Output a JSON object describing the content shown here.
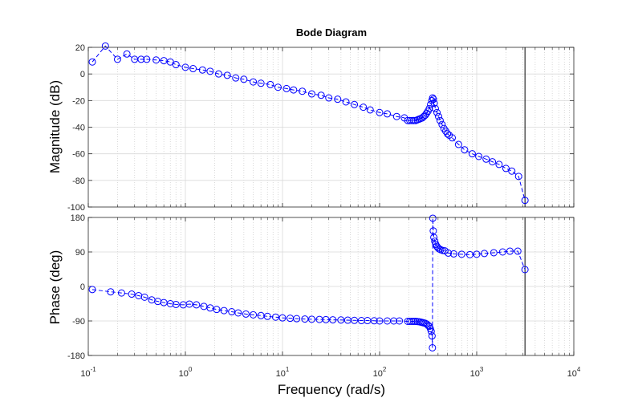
{
  "chart_data": {
    "type": "line",
    "title": "Bode Diagram",
    "xlabel": "Frequency  (rad/s)",
    "xscale": "log",
    "xlim": [
      0.1,
      10000
    ],
    "x_ticks": [
      {
        "base": "10",
        "exp": "-1"
      },
      {
        "base": "10",
        "exp": "0"
      },
      {
        "base": "10",
        "exp": "1"
      },
      {
        "base": "10",
        "exp": "2"
      },
      {
        "base": "10",
        "exp": "3"
      },
      {
        "base": "10",
        "exp": "4"
      }
    ],
    "grid": true,
    "series_color": "#0000ff",
    "marker": "circle-open",
    "line_style": "dashed",
    "vertical_line_x": 3141.6,
    "vertical_line_color": "#000000",
    "magnitude": {
      "ylabel": "Magnitude (dB)",
      "ylim": [
        -100,
        20
      ],
      "y_ticks": [
        "20",
        "0",
        "-20",
        "-40",
        "-60",
        "-80",
        "-100"
      ],
      "points": [
        [
          0.11,
          9
        ],
        [
          0.15,
          21
        ],
        [
          0.2,
          11
        ],
        [
          0.25,
          15
        ],
        [
          0.3,
          11
        ],
        [
          0.35,
          11
        ],
        [
          0.4,
          11
        ],
        [
          0.5,
          10.5
        ],
        [
          0.6,
          10
        ],
        [
          0.7,
          9
        ],
        [
          0.8,
          7
        ],
        [
          1.0,
          5
        ],
        [
          1.2,
          4
        ],
        [
          1.5,
          3
        ],
        [
          1.8,
          2
        ],
        [
          2.2,
          0
        ],
        [
          2.7,
          -1
        ],
        [
          3.3,
          -3
        ],
        [
          4.0,
          -4
        ],
        [
          5.0,
          -6
        ],
        [
          6.0,
          -7
        ],
        [
          7.5,
          -8
        ],
        [
          9.0,
          -10
        ],
        [
          11,
          -11
        ],
        [
          13,
          -12
        ],
        [
          16,
          -13
        ],
        [
          20,
          -15
        ],
        [
          25,
          -16
        ],
        [
          30,
          -18
        ],
        [
          37,
          -19
        ],
        [
          45,
          -21
        ],
        [
          55,
          -23
        ],
        [
          68,
          -25
        ],
        [
          80,
          -27
        ],
        [
          100,
          -29
        ],
        [
          120,
          -30
        ],
        [
          150,
          -32
        ],
        [
          180,
          -33
        ],
        [
          195,
          -35
        ],
        [
          205,
          -35
        ],
        [
          215,
          -35
        ],
        [
          225,
          -35
        ],
        [
          235,
          -35
        ],
        [
          245,
          -34.5
        ],
        [
          255,
          -34
        ],
        [
          265,
          -33.5
        ],
        [
          275,
          -33
        ],
        [
          285,
          -32
        ],
        [
          295,
          -31
        ],
        [
          305,
          -29.5
        ],
        [
          315,
          -28
        ],
        [
          325,
          -26
        ],
        [
          335,
          -23
        ],
        [
          345,
          -20
        ],
        [
          352,
          -18
        ],
        [
          358,
          -19
        ],
        [
          365,
          -22
        ],
        [
          375,
          -26
        ],
        [
          390,
          -29
        ],
        [
          405,
          -32
        ],
        [
          420,
          -35
        ],
        [
          440,
          -38
        ],
        [
          460,
          -41
        ],
        [
          480,
          -43
        ],
        [
          500,
          -45
        ],
        [
          520,
          -46
        ],
        [
          560,
          -48
        ],
        [
          650,
          -53
        ],
        [
          750,
          -57
        ],
        [
          900,
          -60
        ],
        [
          1050,
          -62
        ],
        [
          1250,
          -64
        ],
        [
          1450,
          -66
        ],
        [
          1700,
          -68
        ],
        [
          2000,
          -71
        ],
        [
          2300,
          -73
        ],
        [
          2700,
          -77
        ],
        [
          3141.6,
          -95
        ]
      ]
    },
    "phase": {
      "ylabel": "Phase (deg)",
      "ylim": [
        -180,
        180
      ],
      "y_ticks": [
        "180",
        "90",
        "0",
        "-90",
        "-180"
      ],
      "points": [
        [
          0.11,
          -8
        ],
        [
          0.17,
          -14
        ],
        [
          0.22,
          -17
        ],
        [
          0.28,
          -20
        ],
        [
          0.33,
          -24
        ],
        [
          0.38,
          -28
        ],
        [
          0.45,
          -35
        ],
        [
          0.52,
          -39
        ],
        [
          0.6,
          -42
        ],
        [
          0.7,
          -45
        ],
        [
          0.8,
          -47
        ],
        [
          0.95,
          -48
        ],
        [
          1.1,
          -46
        ],
        [
          1.3,
          -48
        ],
        [
          1.55,
          -52
        ],
        [
          1.8,
          -56
        ],
        [
          2.1,
          -60
        ],
        [
          2.5,
          -63
        ],
        [
          3.0,
          -66
        ],
        [
          3.5,
          -69
        ],
        [
          4.2,
          -72
        ],
        [
          5.0,
          -74
        ],
        [
          6.0,
          -76
        ],
        [
          7.0,
          -78
        ],
        [
          8.5,
          -80
        ],
        [
          10,
          -82
        ],
        [
          12,
          -83
        ],
        [
          14,
          -84
        ],
        [
          17,
          -85
        ],
        [
          20,
          -85.5
        ],
        [
          24,
          -86
        ],
        [
          28,
          -86.5
        ],
        [
          33,
          -87
        ],
        [
          40,
          -87.5
        ],
        [
          47,
          -88
        ],
        [
          55,
          -88.5
        ],
        [
          65,
          -89
        ],
        [
          75,
          -89
        ],
        [
          88,
          -89.5
        ],
        [
          100,
          -90
        ],
        [
          120,
          -90
        ],
        [
          140,
          -90
        ],
        [
          160,
          -90
        ],
        [
          195,
          -91
        ],
        [
          205,
          -91
        ],
        [
          215,
          -91
        ],
        [
          225,
          -91
        ],
        [
          235,
          -91
        ],
        [
          245,
          -91.5
        ],
        [
          255,
          -92
        ],
        [
          265,
          -93
        ],
        [
          275,
          -94
        ],
        [
          285,
          -95
        ],
        [
          295,
          -96
        ],
        [
          305,
          -98
        ],
        [
          315,
          -101
        ],
        [
          325,
          -104
        ],
        [
          333,
          -110
        ],
        [
          340,
          -117
        ],
        [
          347,
          -129
        ],
        [
          350,
          -160
        ],
        [
          353,
          178
        ],
        [
          357,
          145
        ],
        [
          362,
          128
        ],
        [
          370,
          118
        ],
        [
          378,
          110
        ],
        [
          388,
          105
        ],
        [
          398,
          101
        ],
        [
          410,
          98
        ],
        [
          425,
          96
        ],
        [
          445,
          94
        ],
        [
          470,
          93
        ],
        [
          510,
          87
        ],
        [
          580,
          85
        ],
        [
          700,
          84
        ],
        [
          850,
          83
        ],
        [
          1000,
          84
        ],
        [
          1200,
          86
        ],
        [
          1500,
          88
        ],
        [
          1850,
          90
        ],
        [
          2200,
          92
        ],
        [
          2650,
          92
        ],
        [
          3141.6,
          44
        ]
      ]
    }
  }
}
